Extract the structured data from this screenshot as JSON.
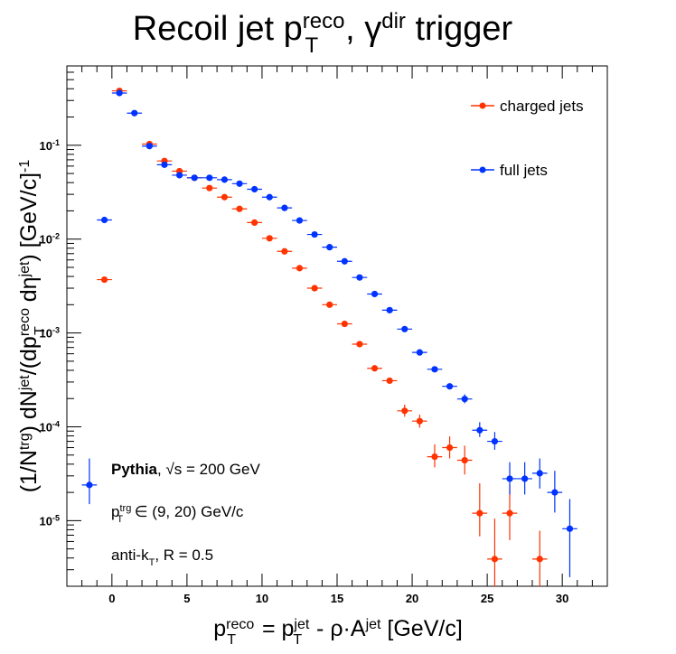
{
  "chart_data": {
    "type": "scatter",
    "title": {
      "base": "Recoil jet p",
      "sup": "reco",
      "sub": "T",
      "mid": ", γ",
      "sup2": "dir",
      "end": " trigger"
    },
    "xlabel": {
      "p1": "p",
      "p1sup": "reco",
      "p1sub": "T",
      "eq": " = p",
      "p2sup": "jet",
      "p2sub": "T",
      "mid": " - ρ·A",
      "asup": "jet",
      "end": " [GeV/c]"
    },
    "ylabel": {
      "a": "(1/N",
      "asup": "trg",
      "b": ") dN",
      "bsup": "jet",
      "c": "/(dp",
      "csup": "reco",
      "csub": "T",
      "d": " dη",
      "dsup": "jet",
      "e": ") [GeV/c]",
      "esup": "-1"
    },
    "xlim": [
      -3,
      33
    ],
    "ylim": [
      2e-06,
      0.7
    ],
    "yscale": "log",
    "xticks": [
      0,
      5,
      10,
      15,
      20,
      25,
      30
    ],
    "yticks": [
      {
        "v": 0.1,
        "m": "10",
        "e": "-1"
      },
      {
        "v": 0.01,
        "m": "10",
        "e": "-2"
      },
      {
        "v": 0.001,
        "m": "10",
        "e": "-3"
      },
      {
        "v": 0.0001,
        "m": "10",
        "e": "-4"
      },
      {
        "v": 1e-05,
        "m": "10",
        "e": "-5"
      }
    ],
    "legend_position": "top-right",
    "series": [
      {
        "name": "charged jets",
        "color": "#ff3300",
        "points": [
          [
            -0.5,
            0.0037,
            0.0037,
            0.0037
          ],
          [
            0.5,
            0.38,
            0.38,
            0.38
          ],
          [
            2.5,
            0.103,
            0.103,
            0.103
          ],
          [
            3.5,
            0.068,
            0.068,
            0.068
          ],
          [
            4.5,
            0.053,
            0.053,
            0.053
          ],
          [
            5.5,
            0.045,
            0.045,
            0.045
          ],
          [
            6.5,
            0.035,
            0.035,
            0.035
          ],
          [
            7.5,
            0.028,
            0.028,
            0.028
          ],
          [
            8.5,
            0.021,
            0.021,
            0.021
          ],
          [
            9.5,
            0.015,
            0.015,
            0.015
          ],
          [
            10.5,
            0.0102,
            0.0102,
            0.0102
          ],
          [
            11.5,
            0.0074,
            0.0074,
            0.0074
          ],
          [
            12.5,
            0.0049,
            0.0049,
            0.0049
          ],
          [
            13.5,
            0.003,
            0.003,
            0.003
          ],
          [
            14.5,
            0.002,
            0.002,
            0.002
          ],
          [
            15.5,
            0.00125,
            0.00125,
            0.00125
          ],
          [
            16.5,
            0.00076,
            0.00076,
            0.00076
          ],
          [
            17.5,
            0.00042,
            0.00042,
            0.00042
          ],
          [
            18.5,
            0.00031,
            0.00031,
            0.00031
          ],
          [
            19.5,
            0.000148,
            0.000128,
            0.000172
          ],
          [
            20.5,
            0.000115,
            9.8e-05,
            0.000135
          ],
          [
            21.5,
            4.8e-05,
            3.7e-05,
            6.5e-05
          ],
          [
            22.5,
            6e-05,
            4.6e-05,
            7.9e-05
          ],
          [
            23.5,
            4.4e-05,
            3.1e-05,
            6.3e-05
          ],
          [
            24.5,
            1.2e-05,
            6.8e-06,
            2.5e-05
          ],
          [
            25.5,
            3.9e-06,
            2e-06,
            1.05e-05
          ],
          [
            26.5,
            1.2e-05,
            6.2e-06,
            2.4e-05
          ],
          [
            28.5,
            3.9e-06,
            2e-06,
            7.8e-06
          ]
        ]
      },
      {
        "name": "full jets",
        "color": "#0033ff",
        "points": [
          [
            -1.5,
            2.4e-05,
            1.5e-05,
            4.6e-05
          ],
          [
            -0.5,
            0.016,
            0.016,
            0.016
          ],
          [
            0.5,
            0.36,
            0.36,
            0.36
          ],
          [
            1.5,
            0.22,
            0.22,
            0.22
          ],
          [
            2.5,
            0.098,
            0.098,
            0.098
          ],
          [
            3.5,
            0.062,
            0.062,
            0.062
          ],
          [
            4.5,
            0.048,
            0.048,
            0.048
          ],
          [
            5.5,
            0.045,
            0.045,
            0.045
          ],
          [
            6.5,
            0.045,
            0.045,
            0.045
          ],
          [
            7.5,
            0.043,
            0.043,
            0.043
          ],
          [
            8.5,
            0.039,
            0.039,
            0.039
          ],
          [
            9.5,
            0.034,
            0.034,
            0.034
          ],
          [
            10.5,
            0.028,
            0.028,
            0.028
          ],
          [
            11.5,
            0.0215,
            0.0215,
            0.0215
          ],
          [
            12.5,
            0.0158,
            0.0158,
            0.0158
          ],
          [
            13.5,
            0.0112,
            0.0112,
            0.0112
          ],
          [
            14.5,
            0.0082,
            0.0082,
            0.0082
          ],
          [
            15.5,
            0.0058,
            0.0058,
            0.0058
          ],
          [
            16.5,
            0.0039,
            0.0039,
            0.0039
          ],
          [
            17.5,
            0.0026,
            0.0026,
            0.0026
          ],
          [
            18.5,
            0.00175,
            0.00175,
            0.00175
          ],
          [
            19.5,
            0.0011,
            0.0011,
            0.0011
          ],
          [
            20.5,
            0.00062,
            0.00062,
            0.00062
          ],
          [
            21.5,
            0.00041,
            0.00041,
            0.00041
          ],
          [
            22.5,
            0.00027,
            0.00027,
            0.00027
          ],
          [
            23.5,
            0.000198,
            0.000178,
            0.000222
          ],
          [
            24.5,
            9.2e-05,
            7.8e-05,
            0.000112
          ],
          [
            25.5,
            7e-05,
            5.7e-05,
            8.8e-05
          ],
          [
            26.5,
            2.8e-05,
            1.9e-05,
            4.2e-05
          ],
          [
            27.5,
            2.8e-05,
            1.9e-05,
            4.2e-05
          ],
          [
            28.5,
            3.2e-05,
            2.2e-05,
            4.6e-05
          ],
          [
            29.5,
            2e-05,
            1.22e-05,
            3.4e-05
          ],
          [
            30.5,
            8.2e-06,
            2.5e-06,
            1.7e-05
          ]
        ]
      }
    ],
    "annotations": {
      "line1_bold": "Pythia",
      "line1_rest": ", √s = 200 GeV",
      "line2": {
        "p": "p",
        "sup": "trg",
        "sub": "T",
        "rest": " ∈ (9, 20) GeV/c"
      },
      "line3": {
        "a": "anti-k",
        "sub": "T",
        "rest": ", R = 0.5"
      }
    }
  }
}
